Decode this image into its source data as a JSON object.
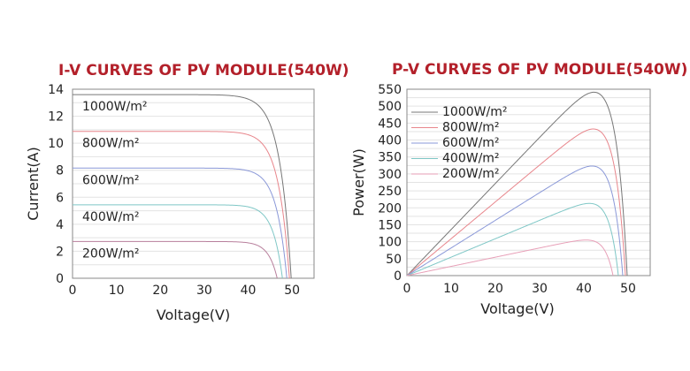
{
  "chart_data": [
    {
      "type": "line",
      "title": "I-V CURVES OF PV MODULE(540W)",
      "xlabel": "Voltage(V)",
      "ylabel": "Current(A)",
      "xlim": [
        0,
        55
      ],
      "ylim": [
        0,
        14
      ],
      "xticks": [
        0,
        10,
        20,
        30,
        40,
        50
      ],
      "yticks": [
        0,
        2,
        4,
        6,
        8,
        10,
        12,
        14
      ],
      "grid": "horizontal",
      "legend": "inline labels",
      "series": [
        {
          "name": "1000W/m²",
          "color": "#777777",
          "isc": 13.6,
          "voc": 49.8,
          "vmp": 41.6,
          "imp": 12.99
        },
        {
          "name": "800W/m²",
          "color": "#e8868c",
          "isc": 10.88,
          "voc": 49.4,
          "vmp": 41.6,
          "imp": 10.4
        },
        {
          "name": "600W/m²",
          "color": "#8a98d8",
          "isc": 8.16,
          "voc": 48.8,
          "vmp": 41.4,
          "imp": 7.8
        },
        {
          "name": "400W/m²",
          "color": "#7fc7c6",
          "isc": 5.44,
          "voc": 47.8,
          "vmp": 41.0,
          "imp": 5.2
        },
        {
          "name": "200W/m²",
          "color": "#b87f9c",
          "isc": 2.72,
          "voc": 46.6,
          "vmp": 40.4,
          "imp": 2.6
        }
      ]
    },
    {
      "type": "line",
      "title": "P-V CURVES OF PV MODULE(540W)",
      "xlabel": "Voltage(V)",
      "ylabel": "Power(W)",
      "xlim": [
        0,
        55
      ],
      "ylim": [
        0,
        550
      ],
      "xticks": [
        0,
        10,
        20,
        30,
        40,
        50
      ],
      "yticks": [
        0,
        50,
        100,
        150,
        200,
        250,
        300,
        350,
        400,
        450,
        500,
        550
      ],
      "grid": "horizontal",
      "legend": "top-left",
      "series": [
        {
          "name": "1000W/m²",
          "color": "#777777",
          "pmax": 540,
          "vmp": 41.6,
          "voc": 49.8
        },
        {
          "name": "800W/m²",
          "color": "#e8868c",
          "pmax": 432,
          "vmp": 41.6,
          "voc": 49.4
        },
        {
          "name": "600W/m²",
          "color": "#8a98d8",
          "pmax": 323,
          "vmp": 41.4,
          "voc": 48.8
        },
        {
          "name": "400W/m²",
          "color": "#7fc7c6",
          "pmax": 213,
          "vmp": 41.0,
          "voc": 47.8
        },
        {
          "name": "200W/m²",
          "color": "#e8a0b8",
          "pmax": 105,
          "vmp": 40.4,
          "voc": 46.6
        }
      ]
    }
  ]
}
